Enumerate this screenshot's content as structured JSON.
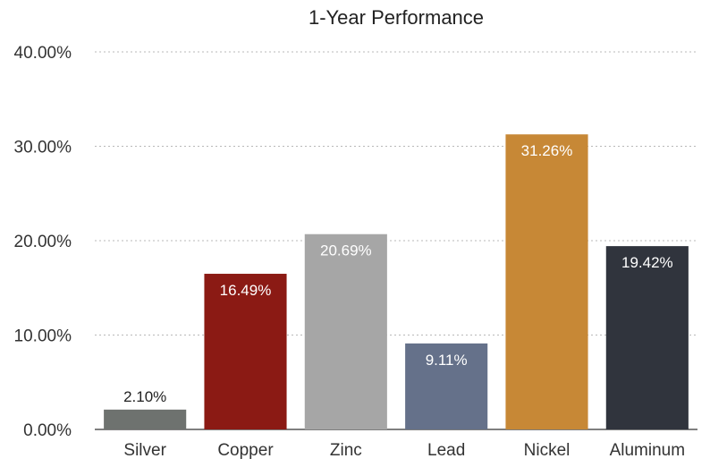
{
  "chart_data": {
    "type": "bar",
    "title": "1-Year Performance",
    "categories": [
      "Silver",
      "Copper",
      "Zinc",
      "Lead",
      "Nickel",
      "Aluminum"
    ],
    "values": [
      2.1,
      16.49,
      20.69,
      9.11,
      31.26,
      19.42
    ],
    "value_labels": [
      "2.10%",
      "16.49%",
      "20.69%",
      "9.11%",
      "31.26%",
      "19.42%"
    ],
    "colors": [
      "#6e726f",
      "#8b1a14",
      "#a6a6a6",
      "#65718a",
      "#c78836",
      "#30343d"
    ],
    "label_colors": [
      "#222222",
      "#ffffff",
      "#ffffff",
      "#ffffff",
      "#ffffff",
      "#ffffff"
    ],
    "ylim": [
      0,
      40
    ],
    "yticks": [
      0,
      10,
      20,
      30,
      40
    ],
    "ytick_labels": [
      "0.00%",
      "10.00%",
      "20.00%",
      "30.00%",
      "40.00%"
    ],
    "xlabel": "",
    "ylabel": "",
    "grid": true,
    "legend": "none"
  }
}
